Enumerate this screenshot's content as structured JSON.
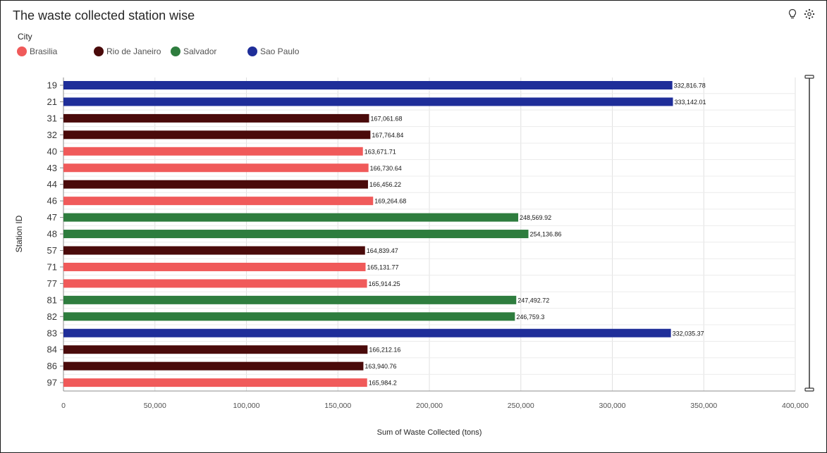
{
  "title": "The waste collected station wise",
  "toolbar": {
    "insight_icon": "lightbulb-icon",
    "settings_icon": "gear-icon"
  },
  "legend": {
    "title": "City",
    "items": [
      {
        "label": "Brasilia",
        "color": "#F05A5A"
      },
      {
        "label": "Rio de Janeiro",
        "color": "#4A0A0A"
      },
      {
        "label": "Salvador",
        "color": "#2E7D3E"
      },
      {
        "label": "Sao Paulo",
        "color": "#1F2E99"
      }
    ]
  },
  "chart_data": {
    "type": "bar",
    "orientation": "horizontal",
    "xlabel": "Sum of Waste Collected (tons)",
    "ylabel": "Station ID",
    "xlim": [
      0,
      400000
    ],
    "xticks": [
      "0",
      "50,000",
      "100,000",
      "150,000",
      "200,000",
      "250,000",
      "300,000",
      "350,000",
      "400,000"
    ],
    "grid": true,
    "legend_position": "top-left",
    "categories": [
      "19",
      "21",
      "31",
      "32",
      "40",
      "43",
      "44",
      "46",
      "47",
      "48",
      "57",
      "71",
      "77",
      "81",
      "82",
      "83",
      "84",
      "86",
      "97"
    ],
    "cities": [
      "Sao Paulo",
      "Sao Paulo",
      "Rio de Janeiro",
      "Rio de Janeiro",
      "Brasilia",
      "Brasilia",
      "Rio de Janeiro",
      "Brasilia",
      "Salvador",
      "Salvador",
      "Rio de Janeiro",
      "Brasilia",
      "Brasilia",
      "Salvador",
      "Salvador",
      "Sao Paulo",
      "Rio de Janeiro",
      "Rio de Janeiro",
      "Brasilia"
    ],
    "values": [
      332816.78,
      333142.01,
      167061.68,
      167764.84,
      163671.71,
      166730.64,
      166456.22,
      169264.68,
      248569.92,
      254136.86,
      164839.47,
      165131.77,
      165914.25,
      247492.72,
      246759.3,
      332035.37,
      166212.16,
      163940.76,
      165984.2
    ],
    "value_labels": [
      "332,816.78",
      "333,142.01",
      "167,061.68",
      "167,764.84",
      "163,671.71",
      "166,730.64",
      "166,456.22",
      "169,264.68",
      "248,569.92",
      "254,136.86",
      "164,839.47",
      "165,131.77",
      "165,914.25",
      "247,492.72",
      "246,759.3",
      "332,035.37",
      "166,212.16",
      "163,940.76",
      "165,984.2"
    ]
  }
}
